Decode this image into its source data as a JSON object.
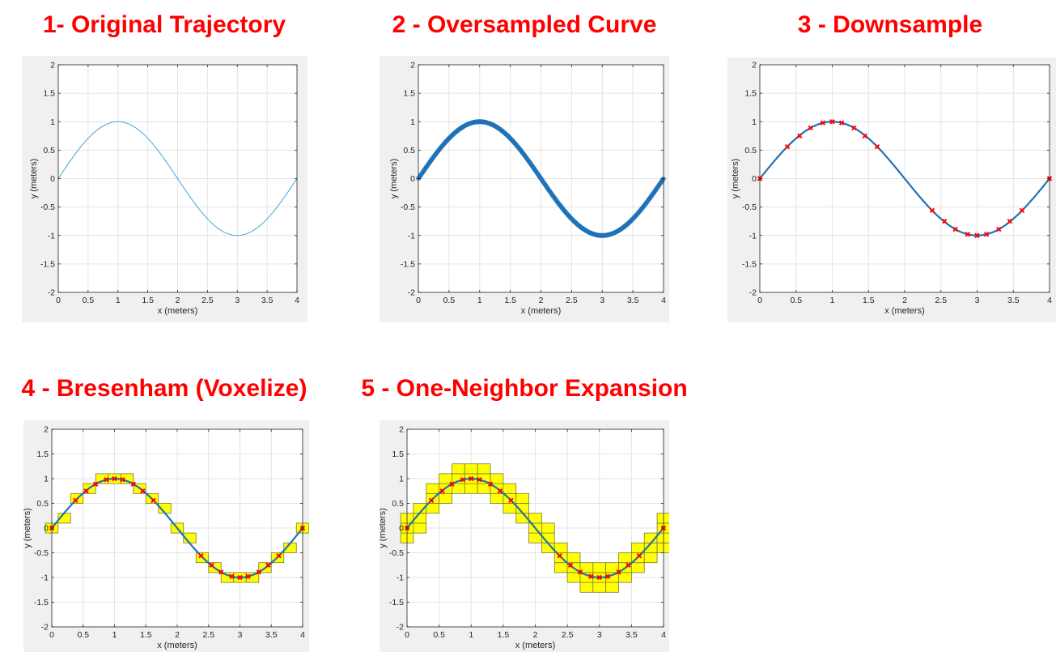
{
  "colors": {
    "title": "#ff0000",
    "line": "#1f72b8",
    "thin_line": "#4aa3d6",
    "marker": "#ff0000",
    "voxel_fill": "#ffff00",
    "voxel_edge": "#7a7a3a",
    "figure_bg": "#f0f0f0",
    "grid": "#e4e4e4"
  },
  "chart_data": [
    {
      "id": "p1",
      "title": "1- Original Trajectory",
      "type": "line",
      "style": "thin",
      "curve": "y = sin(pi/2 * x)",
      "x": [
        0,
        0.5,
        1,
        1.5,
        2,
        2.5,
        3,
        3.5,
        4
      ],
      "y": [
        0,
        0.707,
        1,
        0.707,
        0,
        -0.707,
        -1,
        -0.707,
        0
      ],
      "xlabel": "x (meters)",
      "ylabel": "y (meters)",
      "xlim": [
        0,
        4
      ],
      "ylim": [
        -2,
        2
      ],
      "xticks": [
        "0",
        "0.5",
        "1",
        "1.5",
        "2",
        "2.5",
        "3",
        "3.5",
        "4"
      ],
      "yticks": [
        "-2",
        "-1.5",
        "-1",
        "-0.5",
        "0",
        "0.5",
        "1",
        "1.5",
        "2"
      ],
      "grid": true
    },
    {
      "id": "p2",
      "title": "2 - Oversampled Curve",
      "type": "line",
      "style": "oversampled",
      "curve": "y = sin(pi/2 * x)",
      "x": [
        0,
        0.5,
        1,
        1.5,
        2,
        2.5,
        3,
        3.5,
        4
      ],
      "y": [
        0,
        0.707,
        1,
        0.707,
        0,
        -0.707,
        -1,
        -0.707,
        0
      ],
      "xlabel": "x (meters)",
      "ylabel": "y (meters)",
      "xlim": [
        0,
        4
      ],
      "ylim": [
        -2,
        2
      ],
      "xticks": [
        "0",
        "0.5",
        "1",
        "1.5",
        "2",
        "2.5",
        "3",
        "3.5",
        "4"
      ],
      "yticks": [
        "-2",
        "-1.5",
        "-1",
        "-0.5",
        "0",
        "0.5",
        "1",
        "1.5",
        "2"
      ],
      "grid": true
    },
    {
      "id": "p3",
      "title": "3 - Downsample",
      "type": "line",
      "style": "downsample",
      "curve": "y = sin(pi/2 * x)",
      "points_x": [
        0,
        0.38,
        0.55,
        0.7,
        0.87,
        1.0,
        1.13,
        1.3,
        1.45,
        1.62,
        2.38,
        2.55,
        2.7,
        2.87,
        3.0,
        3.13,
        3.3,
        3.45,
        3.62,
        4.0
      ],
      "points_y": [
        0,
        0.56,
        0.75,
        0.89,
        0.98,
        1.0,
        0.98,
        0.89,
        0.75,
        0.56,
        -0.56,
        -0.75,
        -0.89,
        -0.98,
        -1.0,
        -0.98,
        -0.89,
        -0.75,
        -0.56,
        0
      ],
      "xlabel": "x (meters)",
      "ylabel": "y (meters)",
      "xlim": [
        0,
        4
      ],
      "ylim": [
        -2,
        2
      ],
      "xticks": [
        "0",
        "0.5",
        "1",
        "1.5",
        "2",
        "2.5",
        "3",
        "3.5",
        "4"
      ],
      "yticks": [
        "-2",
        "-1.5",
        "-1",
        "-0.5",
        "0",
        "0.5",
        "1",
        "1.5",
        "2"
      ],
      "grid": true
    },
    {
      "id": "p4",
      "title": "4 - Bresenham (Voxelize)",
      "type": "line",
      "style": "voxel",
      "curve": "y = sin(pi/2 * x)",
      "voxel_size": 0.2,
      "voxel_centers": [
        [
          0,
          0
        ],
        [
          0.2,
          0.2
        ],
        [
          0.4,
          0.6
        ],
        [
          0.6,
          0.8
        ],
        [
          0.8,
          1.0
        ],
        [
          1.0,
          1.0
        ],
        [
          1.2,
          1.0
        ],
        [
          1.4,
          0.8
        ],
        [
          1.6,
          0.6
        ],
        [
          1.8,
          0.4
        ],
        [
          2.0,
          0.0
        ],
        [
          2.2,
          -0.2
        ],
        [
          2.4,
          -0.6
        ],
        [
          2.6,
          -0.8
        ],
        [
          2.8,
          -1.0
        ],
        [
          3.0,
          -1.0
        ],
        [
          3.2,
          -1.0
        ],
        [
          3.4,
          -0.8
        ],
        [
          3.6,
          -0.6
        ],
        [
          3.8,
          -0.4
        ],
        [
          4.0,
          0.0
        ]
      ],
      "points_x": [
        0,
        0.38,
        0.55,
        0.7,
        0.87,
        1.0,
        1.13,
        1.3,
        1.45,
        1.62,
        2.38,
        2.55,
        2.7,
        2.87,
        3.0,
        3.13,
        3.3,
        3.45,
        3.62,
        4.0
      ],
      "points_y": [
        0,
        0.56,
        0.75,
        0.89,
        0.98,
        1.0,
        0.98,
        0.89,
        0.75,
        0.56,
        -0.56,
        -0.75,
        -0.89,
        -0.98,
        -1.0,
        -0.98,
        -0.89,
        -0.75,
        -0.56,
        0
      ],
      "xlabel": "x (meters)",
      "ylabel": "y (meters)",
      "xlim": [
        0,
        4
      ],
      "ylim": [
        -2,
        2
      ],
      "xticks": [
        "0",
        "0.5",
        "1",
        "1.5",
        "2",
        "2.5",
        "3",
        "3.5",
        "4"
      ],
      "yticks": [
        "-2",
        "-1.5",
        "-1",
        "-0.5",
        "0",
        "0.5",
        "1",
        "1.5",
        "2"
      ],
      "grid": true
    },
    {
      "id": "p5",
      "title": "5 - One-Neighbor Expansion",
      "type": "line",
      "style": "voxel",
      "curve": "y = sin(pi/2 * x)",
      "voxel_size": 0.2,
      "voxel_centers": [
        [
          0,
          -0.2
        ],
        [
          0,
          0
        ],
        [
          0,
          0.2
        ],
        [
          0.2,
          0
        ],
        [
          0.2,
          0.2
        ],
        [
          0.2,
          0.4
        ],
        [
          0.4,
          0.4
        ],
        [
          0.4,
          0.6
        ],
        [
          0.4,
          0.8
        ],
        [
          0.6,
          0.6
        ],
        [
          0.6,
          0.8
        ],
        [
          0.6,
          1.0
        ],
        [
          0.8,
          0.8
        ],
        [
          0.8,
          1.0
        ],
        [
          0.8,
          1.2
        ],
        [
          1.0,
          0.8
        ],
        [
          1.0,
          1.0
        ],
        [
          1.0,
          1.2
        ],
        [
          1.2,
          0.8
        ],
        [
          1.2,
          1.0
        ],
        [
          1.2,
          1.2
        ],
        [
          1.4,
          0.6
        ],
        [
          1.4,
          0.8
        ],
        [
          1.4,
          1.0
        ],
        [
          1.6,
          0.4
        ],
        [
          1.6,
          0.6
        ],
        [
          1.6,
          0.8
        ],
        [
          1.8,
          0.2
        ],
        [
          1.8,
          0.4
        ],
        [
          1.8,
          0.6
        ],
        [
          2.0,
          -0.2
        ],
        [
          2.0,
          0.0
        ],
        [
          2.0,
          0.2
        ],
        [
          2.2,
          -0.4
        ],
        [
          2.2,
          -0.2
        ],
        [
          2.2,
          0.0
        ],
        [
          2.4,
          -0.8
        ],
        [
          2.4,
          -0.6
        ],
        [
          2.4,
          -0.4
        ],
        [
          2.6,
          -1.0
        ],
        [
          2.6,
          -0.8
        ],
        [
          2.6,
          -0.6
        ],
        [
          2.8,
          -1.2
        ],
        [
          2.8,
          -1.0
        ],
        [
          2.8,
          -0.8
        ],
        [
          3.0,
          -1.2
        ],
        [
          3.0,
          -1.0
        ],
        [
          3.0,
          -0.8
        ],
        [
          3.2,
          -1.2
        ],
        [
          3.2,
          -1.0
        ],
        [
          3.2,
          -0.8
        ],
        [
          3.4,
          -1.0
        ],
        [
          3.4,
          -0.8
        ],
        [
          3.4,
          -0.6
        ],
        [
          3.6,
          -0.8
        ],
        [
          3.6,
          -0.6
        ],
        [
          3.6,
          -0.4
        ],
        [
          3.8,
          -0.6
        ],
        [
          3.8,
          -0.4
        ],
        [
          3.8,
          -0.2
        ],
        [
          4.0,
          -0.4
        ],
        [
          4.0,
          -0.2
        ],
        [
          4.0,
          0.0
        ],
        [
          4.0,
          0.2
        ]
      ],
      "points_x": [
        0,
        0.38,
        0.55,
        0.7,
        0.87,
        1.0,
        1.13,
        1.3,
        1.45,
        1.62,
        2.38,
        2.55,
        2.7,
        2.87,
        3.0,
        3.13,
        3.3,
        3.45,
        3.62,
        4.0
      ],
      "points_y": [
        0,
        0.56,
        0.75,
        0.89,
        0.98,
        1.0,
        0.98,
        0.89,
        0.75,
        0.56,
        -0.56,
        -0.75,
        -0.89,
        -0.98,
        -1.0,
        -0.98,
        -0.89,
        -0.75,
        -0.56,
        0
      ],
      "xlabel": "x (meters)",
      "ylabel": "y (meters)",
      "xlim": [
        0,
        4
      ],
      "ylim": [
        -2,
        2
      ],
      "xticks": [
        "0",
        "0.5",
        "1",
        "1.5",
        "2",
        "2.5",
        "3",
        "3.5",
        "4"
      ],
      "yticks": [
        "-2",
        "-1.5",
        "-1",
        "-0.5",
        "0",
        "0.5",
        "1",
        "1.5",
        "2"
      ],
      "grid": true
    }
  ]
}
